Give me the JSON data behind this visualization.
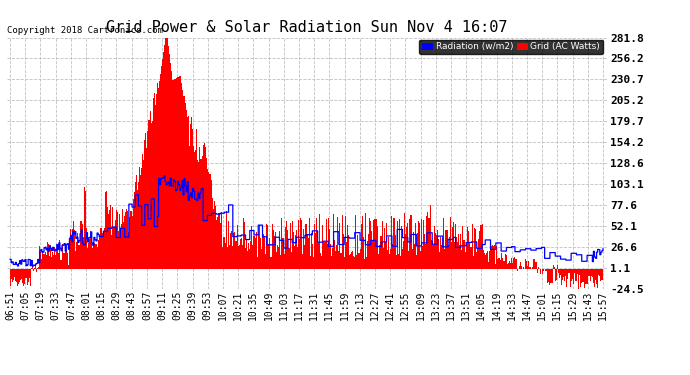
{
  "title": "Grid Power & Solar Radiation Sun Nov 4 16:07",
  "copyright": "Copyright 2018 Cartronics.com",
  "legend_labels": [
    "Radiation (w/m2)",
    "Grid (AC Watts)"
  ],
  "legend_colors": [
    "#0000ff",
    "#ff0000"
  ],
  "yticks": [
    281.8,
    256.2,
    230.7,
    205.2,
    179.7,
    154.2,
    128.6,
    103.1,
    77.6,
    52.1,
    26.6,
    1.1,
    -24.5
  ],
  "ymin": -24.5,
  "ymax": 281.8,
  "bg_color": "#ffffff",
  "plot_bg_color": "#ffffff",
  "grid_color": "#c0c0c0",
  "bar_color": "#ff0000",
  "line_color": "#0000ff",
  "title_fontsize": 11,
  "tick_fontsize": 7,
  "ytick_fontsize": 8,
  "xtick_labels": [
    "06:51",
    "07:05",
    "07:19",
    "07:33",
    "07:47",
    "08:01",
    "08:15",
    "08:29",
    "08:43",
    "08:57",
    "09:11",
    "09:25",
    "09:39",
    "09:53",
    "10:07",
    "10:21",
    "10:35",
    "10:49",
    "11:03",
    "11:17",
    "11:31",
    "11:45",
    "11:59",
    "12:13",
    "12:27",
    "12:41",
    "12:55",
    "13:09",
    "13:23",
    "13:37",
    "13:51",
    "14:05",
    "14:19",
    "14:33",
    "14:47",
    "15:01",
    "15:15",
    "15:29",
    "15:43",
    "15:57"
  ],
  "num_points": 560
}
